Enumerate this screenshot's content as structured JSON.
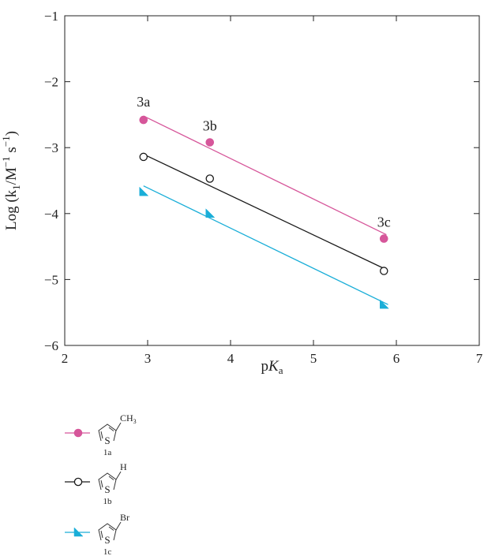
{
  "chart_data": {
    "type": "scatter",
    "xlabel": {
      "main": "p",
      "italic": "K",
      "sub": "a"
    },
    "ylabel": {
      "p1": "Log (k",
      "sub1": "1",
      "p2": "/M",
      "sup1": "−1",
      "p3": " s",
      "sup2": "−1",
      "p4": ")"
    },
    "xlim": [
      2,
      7
    ],
    "ylim": [
      -6,
      -1
    ],
    "x_ticks": [
      "2",
      "3",
      "4",
      "5",
      "6",
      "7"
    ],
    "y_ticks": [
      "−1",
      "−2",
      "−3",
      "−4",
      "−5",
      "−6"
    ],
    "x": [
      2.95,
      3.75,
      5.85
    ],
    "point_labels": [
      "3a",
      "3b",
      "3c"
    ],
    "series": [
      {
        "name": "1a",
        "substituent": "CH",
        "substituent_sub": "3",
        "marker": "filled-circle",
        "color": "#d6569a",
        "values": [
          -2.58,
          -2.92,
          -4.38
        ],
        "fit": [
          [
            2.95,
            -2.52
          ],
          [
            5.88,
            -4.32
          ]
        ]
      },
      {
        "name": "1b",
        "substituent": "H",
        "substituent_sub": "",
        "marker": "open-circle",
        "color": "#1a1a1a",
        "values": [
          -3.14,
          -3.47,
          -4.87
        ],
        "fit": [
          [
            2.95,
            -3.1
          ],
          [
            5.88,
            -4.85
          ]
        ]
      },
      {
        "name": "1c",
        "substituent": "Br",
        "substituent_sub": "",
        "marker": "triangle",
        "color": "#1aaed8",
        "values": [
          -3.67,
          -4.0,
          -5.38
        ],
        "fit": [
          [
            2.95,
            -3.58
          ],
          [
            5.9,
            -5.38
          ]
        ]
      }
    ],
    "ring_heteroatom": "S",
    "grid": false,
    "legend_placement": "below"
  }
}
